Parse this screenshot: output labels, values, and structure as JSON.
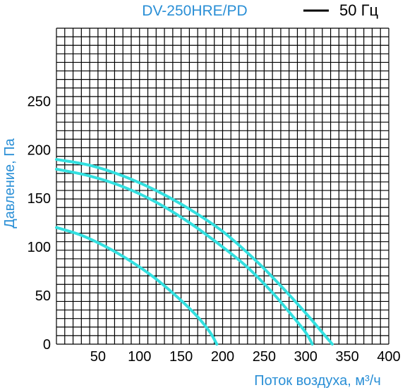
{
  "chart_data": {
    "type": "line",
    "title": "DV-250HRE/PD",
    "xlabel": "Поток воздуха, м³/ч",
    "ylabel": "Давление, Па",
    "xlim": [
      0,
      400
    ],
    "ylim": [
      0,
      325
    ],
    "grid": true,
    "legend_position": "top-right",
    "legend": [
      {
        "label": "50 Гц",
        "color": "#000000"
      }
    ],
    "x_ticks": [
      "50",
      "100",
      "150",
      "200",
      "250",
      "300",
      "350",
      "400"
    ],
    "y_ticks": [
      "0",
      "50",
      "100",
      "150",
      "200",
      "250"
    ],
    "y_tick_values": [
      0,
      50,
      100,
      150,
      200,
      250
    ],
    "x_tick_values": [
      50,
      100,
      150,
      200,
      250,
      300,
      350,
      400
    ],
    "colors": {
      "curve": "#33e0e0",
      "title": "#2a8fd6",
      "axis_label": "#2a8fd6",
      "grid": "#000000"
    },
    "series": [
      {
        "x": [
          0,
          40,
          80,
          120,
          160,
          200,
          240,
          270,
          300,
          320,
          332
        ],
        "y": [
          190,
          184,
          173,
          158,
          139,
          116,
          86,
          60,
          32,
          12,
          0
        ]
      },
      {
        "x": [
          0,
          40,
          80,
          120,
          160,
          200,
          230,
          260,
          285,
          300,
          308
        ],
        "y": [
          180,
          173,
          162,
          146,
          125,
          100,
          79,
          53,
          28,
          12,
          0
        ]
      },
      {
        "x": [
          0,
          30,
          60,
          90,
          120,
          150,
          170,
          185,
          193
        ],
        "y": [
          120,
          112,
          100,
          85,
          67,
          45,
          28,
          12,
          0
        ]
      }
    ]
  }
}
